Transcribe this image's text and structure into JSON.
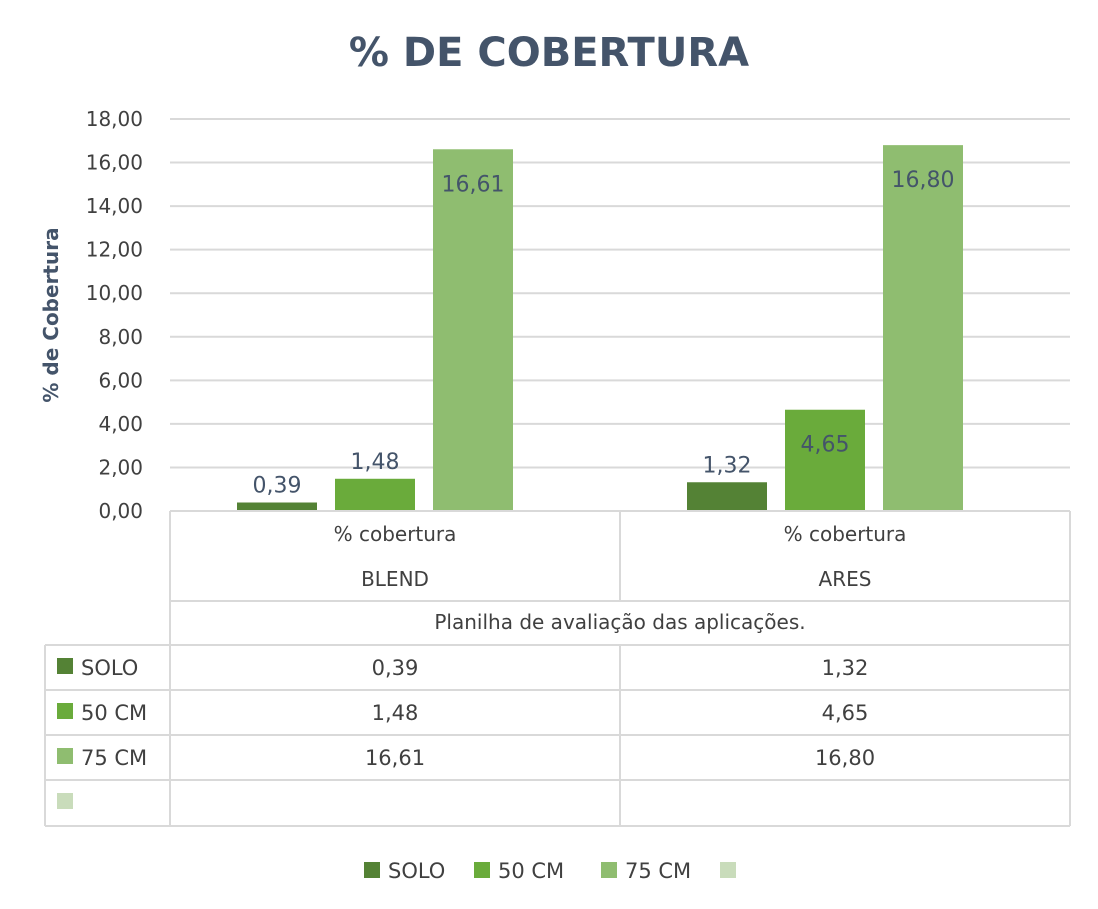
{
  "chart_data": {
    "type": "bar",
    "title": "% DE COBERTURA",
    "ylabel": "% de Cobertura",
    "xlabel": "Planilha de avaliação das aplicações.",
    "ylim": [
      0,
      18
    ],
    "yticks": [
      "0,00",
      "2,00",
      "4,00",
      "6,00",
      "8,00",
      "10,00",
      "12,00",
      "14,00",
      "16,00",
      "18,00"
    ],
    "categories": [
      {
        "label": "% cobertura",
        "group": "BLEND"
      },
      {
        "label": "% cobertura",
        "group": "ARES"
      }
    ],
    "series": [
      {
        "name": "SOLO",
        "values": [
          0.39,
          1.32
        ],
        "labels": [
          "0,39",
          "1,32"
        ],
        "color": "#548235"
      },
      {
        "name": "50 CM",
        "values": [
          1.48,
          4.65
        ],
        "labels": [
          "1,48",
          "4,65"
        ],
        "color": "#6aab3b"
      },
      {
        "name": "75 CM",
        "values": [
          16.61,
          16.8
        ],
        "labels": [
          "16,61",
          "16,80"
        ],
        "color": "#8fbd70"
      },
      {
        "name": "",
        "values": [
          null,
          null
        ],
        "labels": [
          "",
          ""
        ],
        "color": "#c9dcbb"
      }
    ],
    "grid": true,
    "legend": "bottom"
  }
}
